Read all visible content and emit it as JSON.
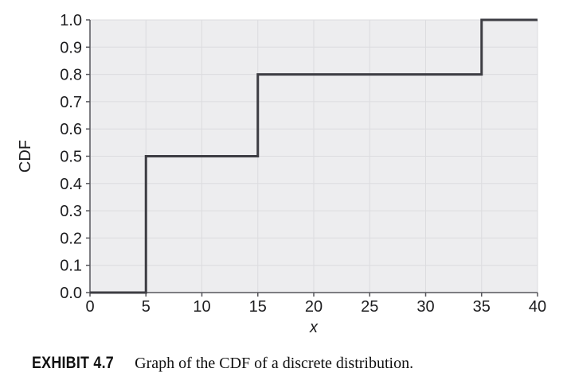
{
  "figure": {
    "caption_label": "EXHIBIT 4.7",
    "caption_text": "Graph of the CDF of a discrete distribution."
  },
  "colors": {
    "page_bg": "#ffffff",
    "plot_bg": "#ededef",
    "grid": "#dcdcdf",
    "axis": "#7d7d82",
    "tick": "#55555a",
    "tick_label": "#1d1d1f",
    "line": "#3d3d43"
  },
  "chart_data": {
    "type": "line",
    "subtype": "step-cdf",
    "title": "",
    "xlabel": "x",
    "ylabel": "CDF",
    "xlim": [
      0,
      40
    ],
    "ylim": [
      0,
      1.0
    ],
    "grid": true,
    "legend": null,
    "xticks": {
      "values": [
        0,
        5,
        10,
        15,
        20,
        25,
        30,
        35,
        40
      ],
      "labels": [
        "0",
        "5",
        "10",
        "15",
        "20",
        "25",
        "30",
        "35",
        "40"
      ]
    },
    "yticks": {
      "values": [
        0,
        0.1,
        0.2,
        0.3,
        0.4,
        0.5,
        0.6,
        0.7,
        0.8,
        0.9,
        1.0
      ],
      "labels": [
        "0.0",
        "0.1",
        "0.2",
        "0.3",
        "0.4",
        "0.5",
        "0.6",
        "0.7",
        "0.8",
        "0.9",
        "1.0"
      ]
    },
    "series": [
      {
        "name": "CDF",
        "points": [
          [
            0,
            0
          ],
          [
            5,
            0
          ],
          [
            5,
            0.5
          ],
          [
            15,
            0.5
          ],
          [
            15,
            0.8
          ],
          [
            35,
            0.8
          ],
          [
            35,
            1.0
          ],
          [
            40,
            1.0
          ]
        ]
      }
    ],
    "jumps": [
      {
        "x": 5,
        "from": 0.0,
        "to": 0.5
      },
      {
        "x": 15,
        "from": 0.5,
        "to": 0.8
      },
      {
        "x": 35,
        "from": 0.8,
        "to": 1.0
      }
    ]
  }
}
